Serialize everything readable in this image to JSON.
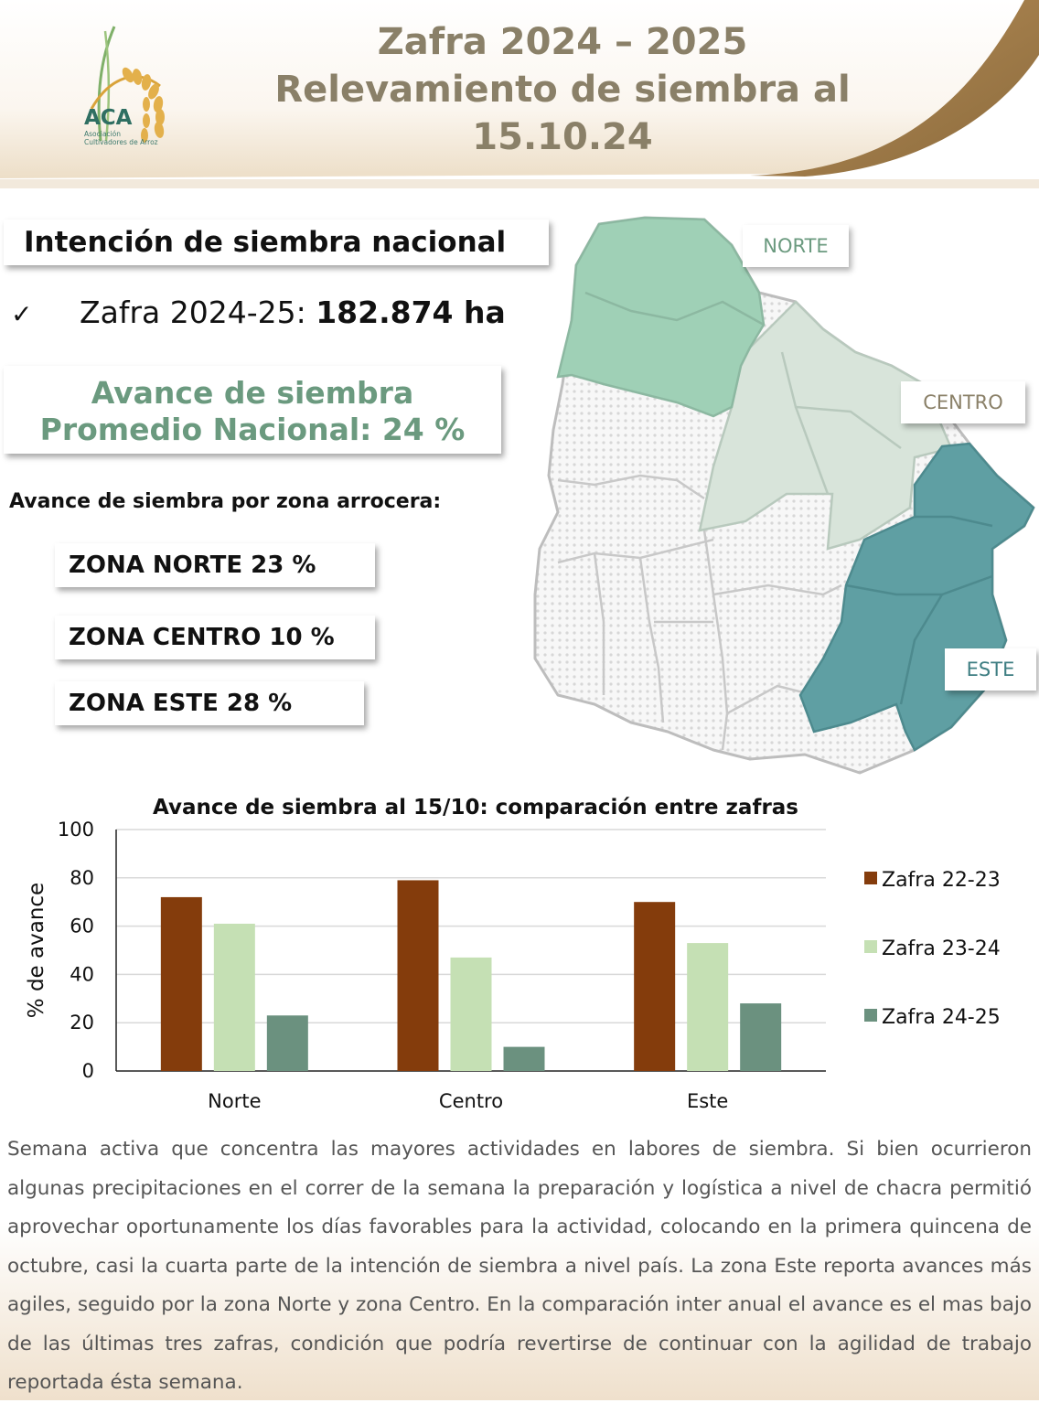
{
  "header": {
    "title_lines": [
      "Zafra 2024 – 2025",
      "Relevamiento de siembra al",
      "15.10.24"
    ],
    "logo": {
      "text": "ACA",
      "subtitle_lines": [
        "Asociación",
        "Cultivadores de Arroz"
      ]
    }
  },
  "summary": {
    "national_title": "Intención de siembra nacional",
    "zafra_label": "Zafra 2024-25: ",
    "zafra_value": "182.874 ha",
    "avance_lines": [
      "Avance de siembra",
      "Promedio Nacional:  24 %"
    ],
    "zones_heading": "Avance de siembra por zona arrocera:",
    "zones": [
      "ZONA NORTE  23 %",
      "ZONA CENTRO 10 %",
      "ZONA ESTE 28 %"
    ]
  },
  "map": {
    "labels": {
      "norte": "NORTE",
      "centro": "CENTRO",
      "este": "ESTE"
    },
    "colors": {
      "norte": "#9fd0b6",
      "centro": "#d6e3d8",
      "este": "#5e9ea2",
      "other": "#f1f1f1",
      "label_norte": "#6b9a7f",
      "label_centro": "#8a8068",
      "label_este": "#3e7e82"
    }
  },
  "chart_data": {
    "type": "bar",
    "title": "Avance de siembra al 15/10: comparación entre zafras",
    "xlabel": "",
    "ylabel": "%  de avance",
    "categories": [
      "Norte",
      "Centro",
      "Este"
    ],
    "ylim": [
      0,
      100
    ],
    "yticks": [
      0,
      20,
      40,
      60,
      80,
      100
    ],
    "grid": true,
    "legend_position": "right",
    "series": [
      {
        "name": "Zafra 22-23",
        "values": [
          72,
          79,
          70
        ],
        "color": "#843c0c"
      },
      {
        "name": "Zafra 23-24",
        "values": [
          61,
          47,
          53
        ],
        "color": "#c5e0b4"
      },
      {
        "name": "Zafra 24-25",
        "values": [
          23,
          10,
          28
        ],
        "color": "#6b917f"
      }
    ]
  },
  "paragraph": "Semana activa que concentra las mayores actividades en labores de siembra. Si bien ocurrieron algunas precipitaciones en el correr de la semana la preparación y logística a nivel de chacra permitió aprovechar oportunamente los días favorables para la actividad, colocando en la primera quincena de octubre, casi la cuarta parte de la intención de siembra a nivel país. La zona Este reporta avances más agiles, seguido por la zona Norte y zona Centro. En la comparación inter anual el avance es el mas bajo de las últimas tres zafras, condición que podría revertirse de continuar con la agilidad de trabajo reportada ésta semana."
}
